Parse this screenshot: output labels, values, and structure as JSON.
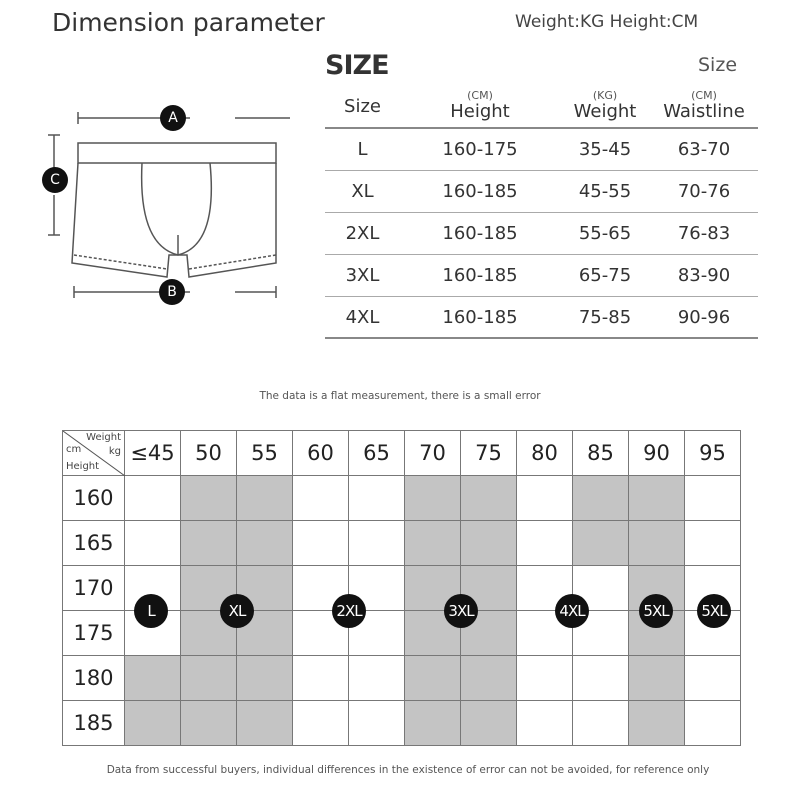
{
  "header": {
    "title": "Dimension parameter",
    "units": "Weight:KG  Height:CM"
  },
  "size_table": {
    "heading": "SIZE",
    "side_label": "Size",
    "columns": [
      {
        "unit": "",
        "label": "Size"
      },
      {
        "unit": "(CM)",
        "label": "Height"
      },
      {
        "unit": "(KG)",
        "label": "Weight"
      },
      {
        "unit": "(CM)",
        "label": "Waistline"
      }
    ],
    "rows": [
      [
        "L",
        "160-175",
        "35-45",
        "63-70"
      ],
      [
        "XL",
        "160-185",
        "45-55",
        "70-76"
      ],
      [
        "2XL",
        "160-185",
        "55-65",
        "76-83"
      ],
      [
        "3XL",
        "160-185",
        "65-75",
        "83-90"
      ],
      [
        "4XL",
        "160-185",
        "75-85",
        "90-96"
      ]
    ]
  },
  "diagram": {
    "labels": [
      "A",
      "B",
      "C"
    ]
  },
  "note_top": "The data is a flat measurement, there is a small error",
  "grid": {
    "corner": {
      "weight": "Weight",
      "kg": "kg",
      "cm": "cm",
      "height": "Height"
    },
    "weights": [
      "≤45",
      "50",
      "55",
      "60",
      "65",
      "70",
      "75",
      "80",
      "85",
      "90",
      "95"
    ],
    "heights": [
      "160",
      "165",
      "170",
      "175",
      "180",
      "185"
    ],
    "shaded": [
      [
        0,
        1,
        1,
        0,
        0,
        1,
        1,
        0,
        1,
        1,
        0
      ],
      [
        0,
        1,
        1,
        0,
        0,
        1,
        1,
        0,
        1,
        1,
        0
      ],
      [
        0,
        1,
        1,
        0,
        0,
        1,
        1,
        0,
        0,
        1,
        0
      ],
      [
        0,
        1,
        1,
        0,
        0,
        1,
        1,
        0,
        0,
        1,
        0
      ],
      [
        1,
        1,
        1,
        0,
        0,
        1,
        1,
        0,
        0,
        1,
        0
      ],
      [
        1,
        1,
        1,
        0,
        0,
        1,
        1,
        0,
        0,
        1,
        0
      ]
    ],
    "size_markers": [
      "L",
      "XL",
      "2XL",
      "3XL",
      "4XL",
      "5XL",
      "5XL"
    ]
  },
  "note_bottom": "Data from successful buyers, individual differences in the existence of error can not be avoided, for reference only"
}
